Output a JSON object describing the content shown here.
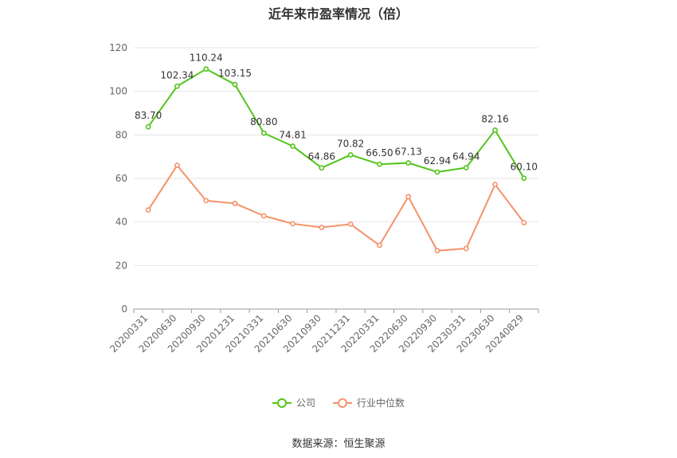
{
  "chart_data": {
    "type": "line",
    "title": "近年来市盈率情况（倍）",
    "categories": [
      "20200331",
      "20200630",
      "20200930",
      "20201231",
      "20210331",
      "20210630",
      "20210930",
      "20211231",
      "20220331",
      "20220630",
      "20220930",
      "20230331",
      "20230630",
      "20240829"
    ],
    "series": [
      {
        "name": "公司",
        "color": "#52c41a",
        "values": [
          83.7,
          102.34,
          110.24,
          103.15,
          80.8,
          74.81,
          64.86,
          70.82,
          66.5,
          67.13,
          62.94,
          64.94,
          82.16,
          60.1
        ],
        "labels": [
          "83.70",
          "102.34",
          "110.24",
          "103.15",
          "80.80",
          "74.81",
          "64.86",
          "70.82",
          "66.50",
          "67.13",
          "62.94",
          "64.94",
          "82.16",
          "60.10"
        ]
      },
      {
        "name": "行业中位数",
        "color": "#f4926a",
        "values": [
          45.5,
          66,
          49.8,
          48.5,
          42.8,
          39.2,
          37.5,
          39,
          29.3,
          51.6,
          26.8,
          27.8,
          57.2,
          39.7
        ]
      }
    ],
    "ylim": [
      0,
      120
    ],
    "yticks": [
      "0",
      "20",
      "40",
      "60",
      "80",
      "100",
      "120"
    ],
    "grid": true,
    "legend_position": "bottom"
  },
  "source": "数据来源：恒生聚源"
}
